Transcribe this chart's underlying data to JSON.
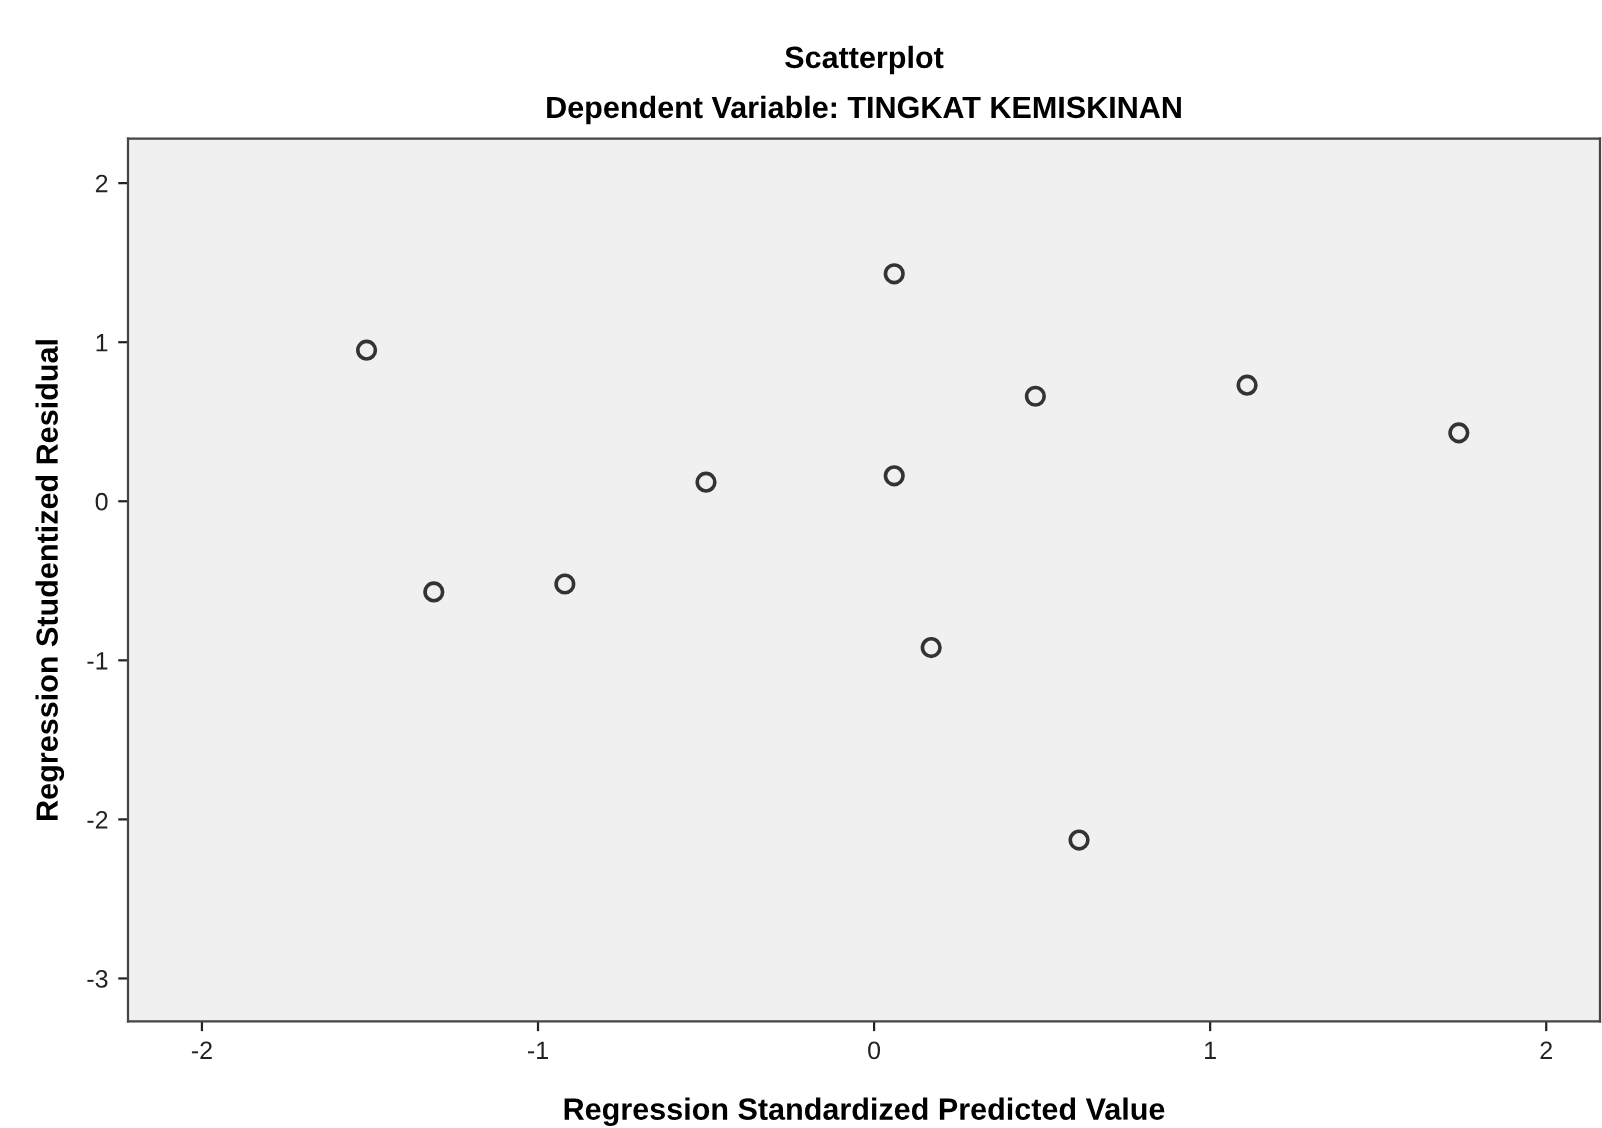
{
  "chart_data": {
    "type": "scatter",
    "title": "Scatterplot",
    "subtitle": "Dependent Variable: TINGKAT KEMISKINAN",
    "xlabel": "Regression Standardized Predicted Value",
    "ylabel": "Regression Studentized Residual",
    "x": [
      -1.51,
      -1.31,
      -0.92,
      -0.5,
      0.06,
      0.06,
      0.17,
      0.48,
      1.11,
      1.74,
      0.61
    ],
    "values": [
      0.95,
      -0.57,
      -0.52,
      0.12,
      1.43,
      0.16,
      -0.92,
      0.66,
      0.73,
      0.43,
      -2.13
    ],
    "color": "#333333",
    "marker": "circle",
    "xlim": [
      -2.22,
      2.16
    ],
    "ylim": [
      -3.27,
      2.28
    ],
    "xticks": [
      -2,
      -1,
      0,
      1,
      2
    ],
    "yticks": [
      -3,
      -2,
      -1,
      0,
      1,
      2
    ],
    "grid": false
  }
}
